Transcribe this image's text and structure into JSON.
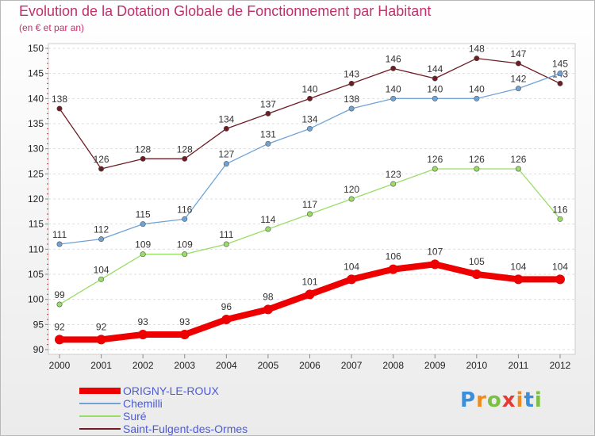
{
  "header": {
    "title": "Evolution de la Dotation Globale de Fonctionnement par Habitant",
    "subtitle": "(en € et par an)"
  },
  "chart_data": {
    "type": "line",
    "title": "Evolution de la Dotation Globale de Fonctionnement par Habitant",
    "subtitle": "(en € et par an)",
    "xlabel": "",
    "ylabel": "",
    "x": [
      2000,
      2001,
      2002,
      2003,
      2004,
      2005,
      2006,
      2007,
      2008,
      2009,
      2010,
      2011,
      2012
    ],
    "ylim": [
      90,
      150
    ],
    "yticks": [
      90,
      95,
      100,
      105,
      110,
      115,
      120,
      125,
      130,
      135,
      140,
      145,
      150
    ],
    "grid": "horizontal dashed",
    "series": [
      {
        "name": "ORIGNY-LE-ROUX",
        "color": "#ee0000",
        "values": [
          92,
          92,
          93,
          93,
          96,
          98,
          101,
          104,
          106,
          107,
          105,
          104,
          104
        ]
      },
      {
        "name": "Chemilli",
        "color": "#6fa3d6",
        "values": [
          111,
          112,
          115,
          116,
          127,
          131,
          134,
          138,
          140,
          140,
          140,
          142,
          145
        ]
      },
      {
        "name": "Suré",
        "color": "#99dd66",
        "values": [
          99,
          104,
          109,
          109,
          111,
          114,
          117,
          120,
          123,
          126,
          126,
          126,
          116
        ]
      },
      {
        "name": "Saint-Fulgent-des-Ormes",
        "color": "#6e1c24",
        "values": [
          138,
          126,
          128,
          128,
          134,
          137,
          140,
          143,
          146,
          144,
          148,
          147,
          143
        ]
      }
    ]
  },
  "logo": {
    "letters": [
      "P",
      "r",
      "o",
      "x",
      "i",
      "t",
      "i"
    ],
    "colors": [
      "#3a8fd8",
      "#f08a1c",
      "#7bc043",
      "#e53935",
      "#f08a1c",
      "#3a8fd8",
      "#7bc043"
    ]
  }
}
